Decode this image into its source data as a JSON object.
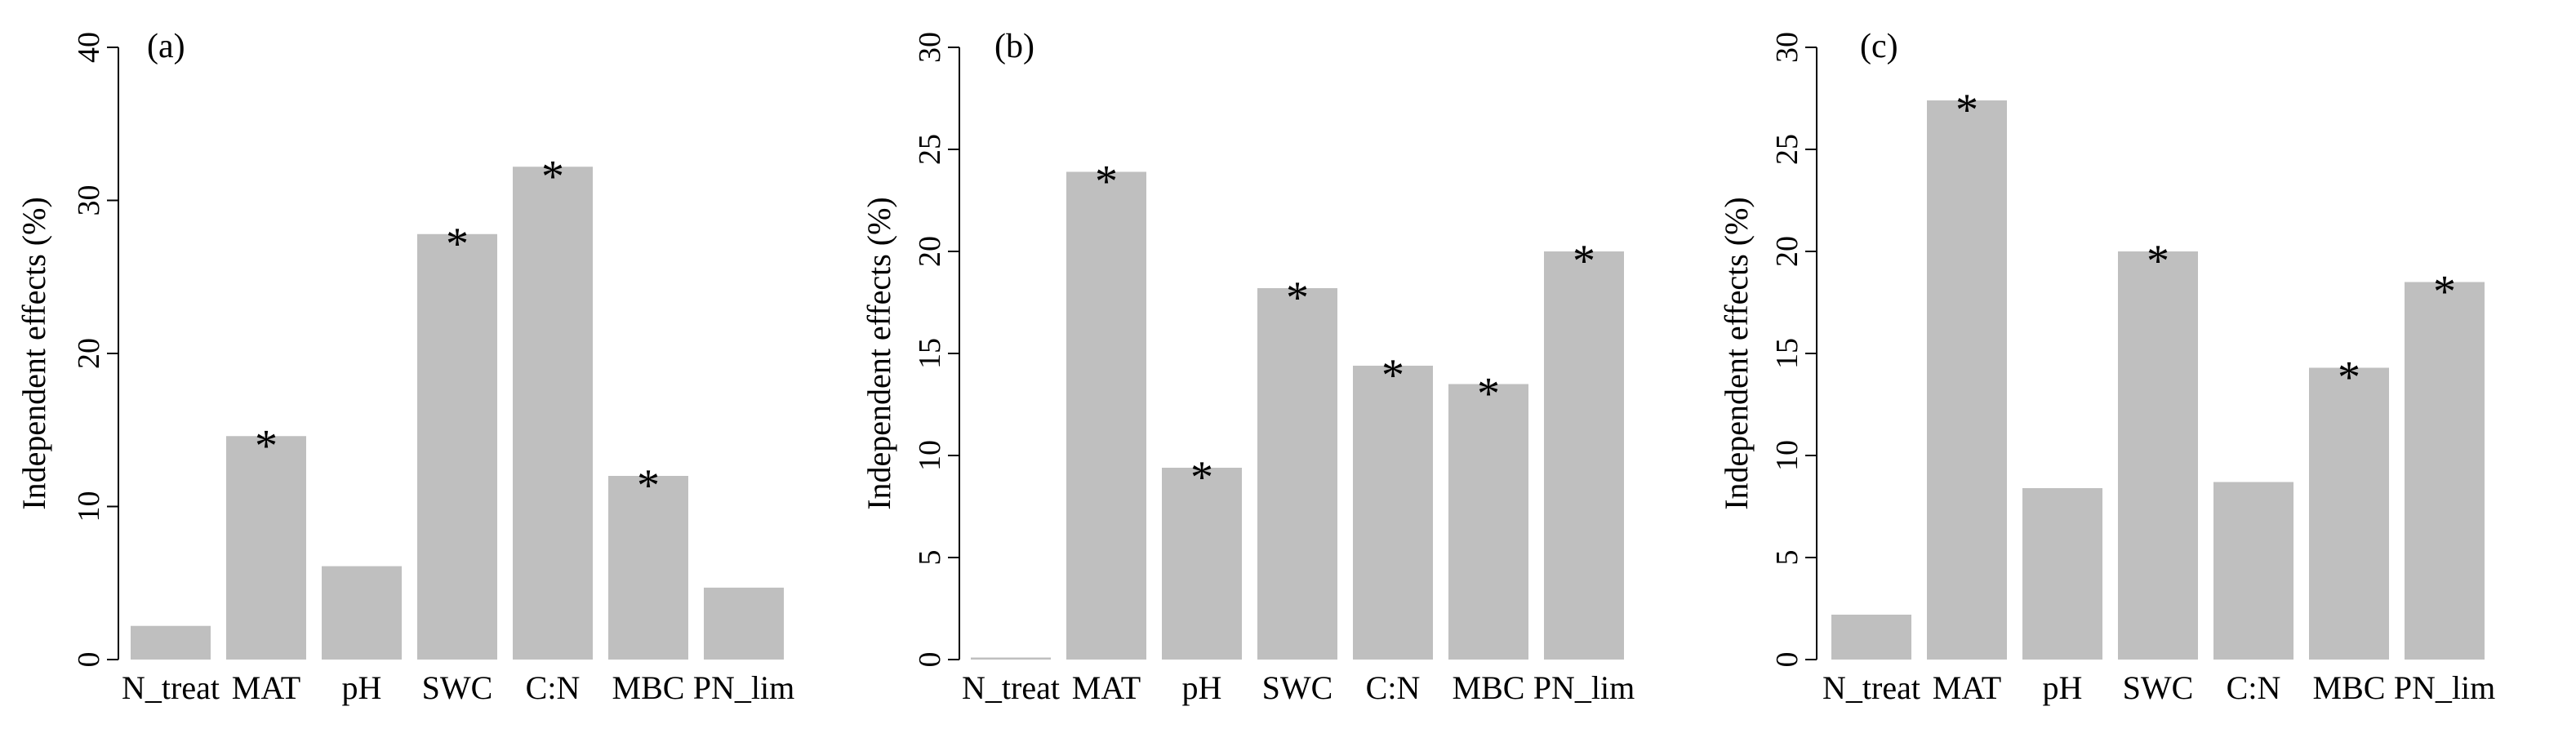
{
  "chart_data": [
    {
      "type": "bar",
      "panel_label": "(a)",
      "ylabel": "Independent effects (%)",
      "ylim": [
        0,
        40
      ],
      "yticks": [
        0,
        10,
        20,
        30,
        40
      ],
      "categories": [
        "N_treat",
        "MAT",
        "pH",
        "SWC",
        "C:N",
        "MBC",
        "PN_lim"
      ],
      "values": [
        2.2,
        14.6,
        6.1,
        27.8,
        32.2,
        12.0,
        4.7
      ],
      "significant": [
        false,
        true,
        false,
        true,
        true,
        true,
        false
      ],
      "significance_marker": "*",
      "bar_color": "#bfbfbf"
    },
    {
      "type": "bar",
      "panel_label": "(b)",
      "ylabel": "Independent effects (%)",
      "ylim": [
        0,
        30
      ],
      "yticks": [
        0,
        5,
        10,
        15,
        20,
        25,
        30
      ],
      "categories": [
        "N_treat",
        "MAT",
        "pH",
        "SWC",
        "C:N",
        "MBC",
        "PN_lim"
      ],
      "values": [
        0.1,
        23.9,
        9.4,
        18.2,
        14.4,
        13.5,
        20.0
      ],
      "significant": [
        false,
        true,
        true,
        true,
        true,
        true,
        true
      ],
      "significance_marker": "*",
      "bar_color": "#bfbfbf"
    },
    {
      "type": "bar",
      "panel_label": "(c)",
      "ylabel": "Independent effects (%)",
      "ylim": [
        0,
        30
      ],
      "yticks": [
        0,
        5,
        10,
        15,
        20,
        25,
        30
      ],
      "categories": [
        "N_treat",
        "MAT",
        "pH",
        "SWC",
        "C:N",
        "MBC",
        "PN_lim"
      ],
      "values": [
        2.2,
        27.4,
        8.4,
        20.0,
        8.7,
        14.3,
        18.5
      ],
      "significant": [
        false,
        true,
        false,
        true,
        false,
        true,
        true
      ],
      "significance_marker": "*",
      "bar_color": "#bfbfbf"
    }
  ]
}
